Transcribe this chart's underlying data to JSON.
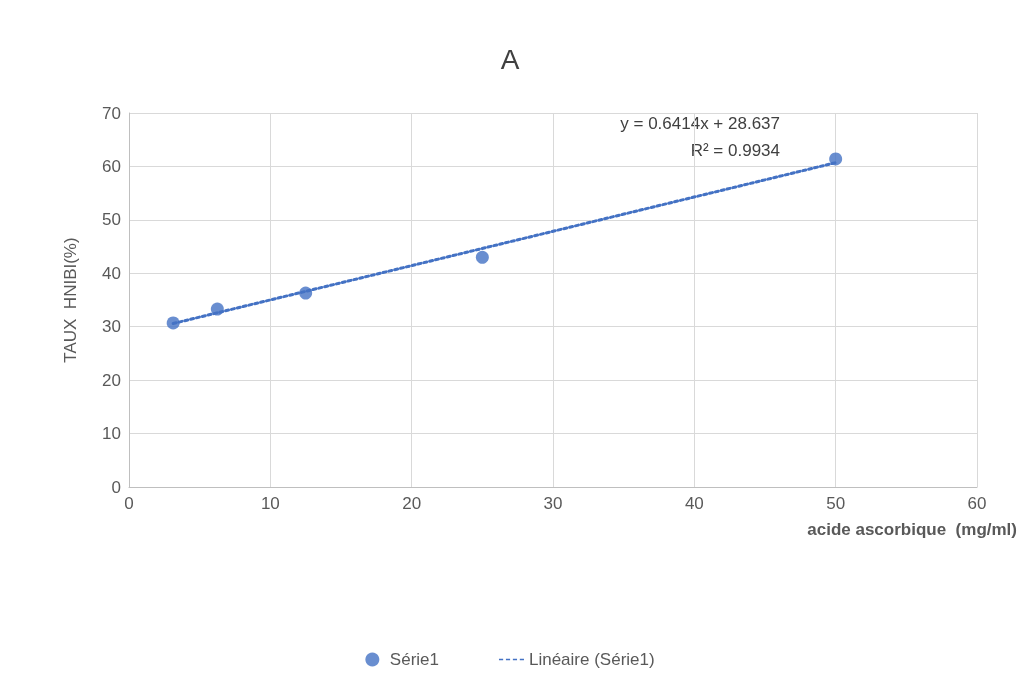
{
  "chart_data": {
    "type": "scatter",
    "title": "A",
    "xlabel": "acide ascorbique  (mg/ml)",
    "ylabel": "TAUX  HNIBI(%)",
    "annotations": [
      "y = 0.6414x + 28.637",
      "R² = 0.9934"
    ],
    "xlim": [
      0,
      60
    ],
    "xticks": [
      0,
      10,
      20,
      30,
      40,
      50,
      60
    ],
    "ylim": [
      0,
      70
    ],
    "yticks": [
      0,
      10,
      20,
      30,
      40,
      50,
      60,
      70
    ],
    "grid": true,
    "legend": "bottom",
    "series": [
      {
        "name": "Série1",
        "color": "#4472c4",
        "marker": "circle",
        "x": [
          3.125,
          6.25,
          12.5,
          25,
          50
        ],
        "values": [
          30.7,
          33.3,
          36.3,
          43.0,
          61.4
        ]
      },
      {
        "name": "Linéaire (Série1)",
        "type": "line",
        "color": "#4472c4",
        "marker": "none",
        "line_style": "dotted",
        "x": [
          3.125,
          50
        ],
        "values": [
          30.6,
          60.7
        ]
      }
    ]
  }
}
